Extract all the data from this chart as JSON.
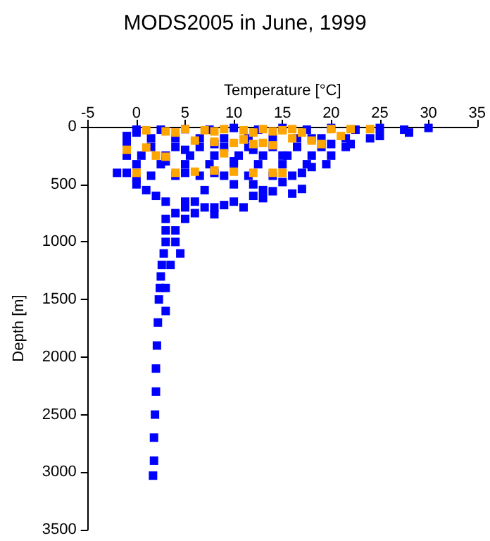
{
  "chart_data": {
    "type": "scatter",
    "title": "MODS2005 in June, 1999",
    "xlabel": "Temperature [°C]",
    "ylabel": "Depth [m]",
    "xlim": [
      -5,
      35
    ],
    "xticks": [
      -5,
      0,
      5,
      10,
      15,
      20,
      25,
      30,
      35
    ],
    "ylim": [
      3500,
      0
    ],
    "yticks": [
      0,
      500,
      1000,
      1500,
      2000,
      2500,
      3000,
      3500
    ],
    "grid": false,
    "marker": "square",
    "series": [
      {
        "color": "#0000ff",
        "x": [
          0,
          5,
          10,
          15,
          20,
          25,
          30,
          28,
          25,
          22,
          20,
          18,
          17,
          15,
          13,
          12,
          10,
          8,
          6,
          5,
          -1,
          -1,
          -1,
          -2,
          -1,
          0,
          0,
          1,
          2,
          3,
          5,
          8,
          10,
          12,
          15,
          18,
          20,
          8,
          5,
          10,
          7,
          12,
          6,
          14,
          16,
          17,
          13,
          9,
          11,
          7,
          5,
          8,
          3,
          3,
          3,
          3,
          2.8,
          2.6,
          2.5,
          2.4,
          2.3,
          2.2,
          2.1,
          2,
          2,
          1.9,
          1.8,
          1.8,
          1.7,
          4,
          4,
          3.5,
          3,
          4.5,
          3,
          4,
          5,
          0,
          2.5,
          7.5,
          12.5,
          17.5,
          22.5,
          27.5,
          1.5,
          4,
          6.5,
          9,
          11.5,
          14,
          16.5,
          19,
          21.5,
          24,
          1.5,
          4,
          6.5,
          9,
          11.5,
          14,
          16.5,
          19,
          21.5,
          0.5,
          3,
          5.5,
          8,
          10.5,
          13,
          15.5,
          18,
          0,
          2.5,
          5,
          7.5,
          10,
          12.5,
          15,
          17.5,
          19.5,
          1.5,
          4,
          6.5,
          9,
          11.5,
          14,
          16
        ],
        "values": [
          50,
          20,
          10,
          10,
          10,
          10,
          10,
          50,
          80,
          150,
          250,
          350,
          400,
          480,
          550,
          600,
          650,
          700,
          750,
          800,
          80,
          150,
          250,
          400,
          400,
          450,
          500,
          550,
          600,
          300,
          200,
          150,
          300,
          200,
          250,
          100,
          150,
          400,
          400,
          500,
          550,
          500,
          650,
          560,
          580,
          540,
          620,
          680,
          700,
          700,
          700,
          760,
          650,
          800,
          900,
          1000,
          1100,
          1200,
          1300,
          1400,
          1500,
          1700,
          1900,
          2100,
          2300,
          2500,
          2700,
          2900,
          3030,
          900,
          1000,
          1200,
          1400,
          1100,
          1600,
          750,
          650,
          25,
          25,
          25,
          25,
          25,
          25,
          25,
          100,
          100,
          100,
          100,
          100,
          100,
          100,
          100,
          100,
          100,
          175,
          175,
          175,
          175,
          175,
          175,
          175,
          175,
          175,
          250,
          250,
          250,
          250,
          250,
          250,
          250,
          250,
          325,
          325,
          325,
          325,
          325,
          325,
          325,
          325,
          325,
          425,
          425,
          425,
          425,
          425,
          425,
          425
        ]
      },
      {
        "color": "#ffa500",
        "x": [
          1,
          3,
          5,
          7,
          9,
          11,
          13,
          15,
          16,
          17,
          4,
          8,
          12,
          14,
          6,
          8,
          10,
          12,
          14,
          20,
          22,
          24,
          21,
          16,
          -1,
          1,
          2,
          3,
          0,
          4,
          6,
          8,
          10,
          12,
          14,
          15,
          18,
          19,
          13,
          9,
          11
        ],
        "values": [
          30,
          40,
          20,
          30,
          20,
          30,
          20,
          30,
          20,
          50,
          50,
          40,
          50,
          40,
          120,
          130,
          140,
          150,
          160,
          20,
          20,
          20,
          80,
          100,
          200,
          180,
          250,
          260,
          400,
          400,
          390,
          380,
          390,
          400,
          400,
          400,
          120,
          150,
          140,
          230,
          110
        ]
      }
    ]
  }
}
